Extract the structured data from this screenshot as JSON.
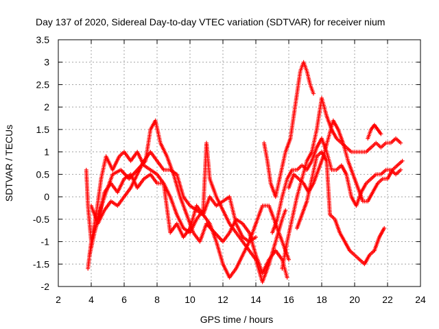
{
  "chart_data": {
    "type": "scatter",
    "title": "Day 137 of 2020, Sidereal Day-to-day VTEC variation (SDTVAR) for receiver nium",
    "xlabel": "GPS time / hours",
    "ylabel": "SDTVAR / TECUs",
    "xlim": [
      2,
      24
    ],
    "ylim": [
      -2,
      3.5
    ],
    "xticks": [
      2,
      4,
      6,
      8,
      10,
      12,
      14,
      16,
      18,
      20,
      22,
      24
    ],
    "yticks": [
      -2,
      -1.5,
      -1,
      -0.5,
      0,
      0.5,
      1,
      1.5,
      2,
      2.5,
      3,
      3.5
    ],
    "xtick_labels": [
      "2",
      "4",
      "6",
      "8",
      "10",
      "12",
      "14",
      "16",
      "18",
      "20",
      "22",
      "24"
    ],
    "ytick_labels": [
      "-2",
      "-1.5",
      "-1",
      "-0.5",
      "0",
      "0.5",
      "1",
      "1.5",
      "2",
      "2.5",
      "3",
      "3.5"
    ],
    "grid": true,
    "marker": "plus",
    "color": "#ff0000",
    "series": [
      {
        "name": "track-1",
        "points": [
          [
            3.7,
            0.6
          ],
          [
            3.8,
            -0.2
          ],
          [
            4.0,
            -1.0
          ],
          [
            4.3,
            -0.6
          ],
          [
            4.8,
            0.0
          ],
          [
            5.3,
            0.5
          ],
          [
            5.8,
            0.6
          ],
          [
            6.3,
            0.4
          ],
          [
            6.8,
            0.6
          ],
          [
            7.3,
            0.8
          ],
          [
            7.6,
            1.5
          ],
          [
            7.9,
            1.7
          ],
          [
            8.2,
            1.2
          ],
          [
            8.6,
            0.9
          ],
          [
            9.0,
            0.5
          ],
          [
            9.4,
            0.0
          ],
          [
            9.8,
            -0.4
          ],
          [
            10.2,
            -0.8
          ],
          [
            10.6,
            -1.0
          ],
          [
            11.0,
            -0.6
          ],
          [
            11.5,
            -0.8
          ],
          [
            12.0,
            -1.0
          ],
          [
            12.4,
            -0.8
          ],
          [
            12.8,
            -0.5
          ],
          [
            13.2,
            -0.6
          ],
          [
            13.6,
            -0.8
          ],
          [
            14.0,
            -1.3
          ],
          [
            14.4,
            -1.7
          ],
          [
            14.8,
            -1.4
          ],
          [
            15.2,
            -1.2
          ],
          [
            15.6,
            -1.4
          ],
          [
            15.9,
            -1.8
          ]
        ]
      },
      {
        "name": "track-2",
        "points": [
          [
            3.8,
            -1.6
          ],
          [
            4.0,
            -1.0
          ],
          [
            4.3,
            -0.4
          ],
          [
            4.6,
            0.4
          ],
          [
            4.9,
            0.9
          ],
          [
            5.3,
            0.6
          ],
          [
            5.7,
            0.9
          ],
          [
            6.0,
            1.0
          ],
          [
            6.4,
            0.8
          ],
          [
            6.8,
            1.0
          ],
          [
            7.2,
            0.7
          ],
          [
            7.6,
            0.6
          ],
          [
            8.0,
            0.5
          ],
          [
            8.4,
            0.3
          ],
          [
            8.8,
            0.0
          ],
          [
            9.2,
            -0.4
          ],
          [
            9.6,
            -0.7
          ],
          [
            10.0,
            -0.8
          ],
          [
            10.4,
            -0.5
          ],
          [
            10.8,
            -0.3
          ],
          [
            11.0,
            1.2
          ],
          [
            11.2,
            0.4
          ],
          [
            11.6,
            0.0
          ],
          [
            12.0,
            -0.3
          ],
          [
            12.4,
            -0.6
          ],
          [
            12.8,
            -0.8
          ],
          [
            13.2,
            -1.0
          ],
          [
            13.6,
            -1.2
          ],
          [
            14.0,
            -1.4
          ],
          [
            14.4,
            -1.9
          ],
          [
            14.8,
            -1.5
          ],
          [
            15.2,
            -1.0
          ],
          [
            15.6,
            -0.5
          ],
          [
            15.8,
            -0.3
          ]
        ]
      },
      {
        "name": "track-3",
        "points": [
          [
            3.9,
            -1.3
          ],
          [
            4.2,
            -0.8
          ],
          [
            4.5,
            -0.4
          ],
          [
            4.8,
            0.1
          ],
          [
            5.2,
            0.3
          ],
          [
            5.6,
            0.1
          ],
          [
            6.0,
            0.4
          ],
          [
            6.4,
            0.5
          ],
          [
            6.8,
            0.2
          ],
          [
            7.2,
            0.4
          ],
          [
            7.6,
            0.5
          ],
          [
            8.0,
            0.3
          ],
          [
            8.4,
            0.3
          ],
          [
            8.8,
            -0.8
          ],
          [
            9.2,
            -0.6
          ],
          [
            9.6,
            -0.9
          ],
          [
            10.0,
            -0.7
          ],
          [
            10.4,
            -0.2
          ],
          [
            10.8,
            -0.4
          ],
          [
            11.2,
            -0.6
          ],
          [
            11.6,
            -1.0
          ],
          [
            12.0,
            -1.5
          ],
          [
            12.4,
            -1.8
          ],
          [
            12.8,
            -1.6
          ],
          [
            13.2,
            -1.3
          ],
          [
            13.6,
            -1.0
          ],
          [
            14.0,
            -0.6
          ],
          [
            14.4,
            -0.2
          ],
          [
            14.8,
            -0.2
          ],
          [
            15.2,
            -0.6
          ],
          [
            15.6,
            -1.0
          ],
          [
            16.0,
            -1.4
          ]
        ]
      },
      {
        "name": "track-4",
        "points": [
          [
            4.0,
            -0.2
          ],
          [
            4.4,
            -0.6
          ],
          [
            4.8,
            -0.3
          ],
          [
            5.2,
            -0.1
          ],
          [
            5.6,
            -0.2
          ],
          [
            6.0,
            0.0
          ],
          [
            6.4,
            0.2
          ],
          [
            6.8,
            0.5
          ],
          [
            7.2,
            0.8
          ],
          [
            7.6,
            1.0
          ],
          [
            8.0,
            0.8
          ],
          [
            8.4,
            0.6
          ],
          [
            8.8,
            0.6
          ],
          [
            9.2,
            0.5
          ],
          [
            9.6,
            0.0
          ],
          [
            10.0,
            -0.2
          ],
          [
            10.4,
            -0.3
          ],
          [
            10.8,
            -0.4
          ],
          [
            11.2,
            0.0
          ],
          [
            11.6,
            -0.2
          ],
          [
            12.0,
            -0.1
          ],
          [
            12.4,
            0.0
          ],
          [
            12.8,
            -0.6
          ],
          [
            13.2,
            -0.9
          ],
          [
            13.6,
            -1.0
          ],
          [
            14.0,
            -0.9
          ]
        ]
      },
      {
        "name": "track-5",
        "points": [
          [
            14.5,
            1.2
          ],
          [
            14.7,
            0.8
          ],
          [
            14.9,
            0.3
          ],
          [
            15.2,
            0.0
          ],
          [
            15.5,
            0.5
          ],
          [
            15.8,
            1.0
          ],
          [
            16.1,
            1.3
          ],
          [
            16.3,
            1.8
          ],
          [
            16.5,
            2.3
          ],
          [
            16.7,
            2.8
          ],
          [
            16.9,
            3.0
          ],
          [
            17.1,
            2.8
          ],
          [
            17.3,
            2.5
          ],
          [
            17.5,
            2.3
          ]
        ]
      },
      {
        "name": "track-6",
        "points": [
          [
            15.0,
            -0.8
          ],
          [
            15.3,
            -0.5
          ],
          [
            15.6,
            0.0
          ],
          [
            15.9,
            0.4
          ],
          [
            16.2,
            0.6
          ],
          [
            16.5,
            0.6
          ],
          [
            16.8,
            0.7
          ],
          [
            17.1,
            0.6
          ],
          [
            17.4,
            0.8
          ],
          [
            17.7,
            1.1
          ],
          [
            18.0,
            1.3
          ],
          [
            18.3,
            1.0
          ],
          [
            18.6,
            0.6
          ],
          [
            18.9,
            0.6
          ],
          [
            19.2,
            0.7
          ],
          [
            19.5,
            0.5
          ],
          [
            19.8,
            0.0
          ],
          [
            20.1,
            -0.2
          ],
          [
            20.4,
            0.1
          ],
          [
            20.7,
            0.3
          ],
          [
            21.0,
            0.4
          ],
          [
            21.3,
            0.5
          ],
          [
            21.6,
            0.5
          ],
          [
            21.9,
            0.6
          ],
          [
            22.2,
            0.6
          ],
          [
            22.5,
            0.5
          ],
          [
            22.8,
            0.6
          ]
        ]
      },
      {
        "name": "track-7",
        "points": [
          [
            15.6,
            -1.6
          ],
          [
            15.9,
            -1.0
          ],
          [
            16.2,
            -0.5
          ],
          [
            16.5,
            0.0
          ],
          [
            16.8,
            0.4
          ],
          [
            17.1,
            0.8
          ],
          [
            17.4,
            1.0
          ],
          [
            17.7,
            1.5
          ],
          [
            18.0,
            2.2
          ],
          [
            18.3,
            1.8
          ],
          [
            18.6,
            1.5
          ],
          [
            18.9,
            1.3
          ],
          [
            19.2,
            1.2
          ],
          [
            19.5,
            1.1
          ],
          [
            19.8,
            1.0
          ],
          [
            20.1,
            1.0
          ],
          [
            20.4,
            1.0
          ],
          [
            20.7,
            1.0
          ],
          [
            21.0,
            1.1
          ],
          [
            21.3,
            1.2
          ],
          [
            21.6,
            1.1
          ],
          [
            21.9,
            1.2
          ],
          [
            22.2,
            1.2
          ],
          [
            22.5,
            1.3
          ],
          [
            22.8,
            1.2
          ]
        ]
      },
      {
        "name": "track-8",
        "points": [
          [
            16.5,
            -0.7
          ],
          [
            16.8,
            -0.4
          ],
          [
            17.1,
            -0.1
          ],
          [
            17.4,
            0.4
          ],
          [
            17.7,
            0.9
          ],
          [
            18.0,
            1.0
          ],
          [
            18.3,
            0.8
          ],
          [
            18.5,
            -0.4
          ],
          [
            18.8,
            -0.5
          ],
          [
            19.1,
            -0.8
          ],
          [
            19.4,
            -1.0
          ],
          [
            19.7,
            -1.2
          ],
          [
            20.0,
            -1.3
          ],
          [
            20.3,
            -1.4
          ],
          [
            20.6,
            -1.5
          ],
          [
            20.9,
            -1.3
          ],
          [
            21.2,
            -1.2
          ],
          [
            21.5,
            -0.9
          ],
          [
            21.8,
            -0.7
          ]
        ]
      },
      {
        "name": "track-9",
        "points": [
          [
            16.0,
            0.2
          ],
          [
            16.3,
            0.5
          ],
          [
            16.6,
            0.4
          ],
          [
            16.9,
            0.3
          ],
          [
            17.2,
            0.1
          ],
          [
            17.5,
            0.3
          ],
          [
            17.8,
            0.6
          ],
          [
            18.1,
            0.9
          ],
          [
            18.4,
            1.3
          ],
          [
            18.7,
            1.7
          ],
          [
            19.0,
            1.5
          ],
          [
            19.3,
            1.2
          ],
          [
            19.6,
            0.8
          ],
          [
            19.9,
            0.5
          ],
          [
            20.2,
            0.2
          ],
          [
            20.5,
            -0.1
          ],
          [
            20.8,
            -0.1
          ],
          [
            21.1,
            0.1
          ],
          [
            21.4,
            0.3
          ],
          [
            21.7,
            0.4
          ],
          [
            22.0,
            0.4
          ],
          [
            22.3,
            0.6
          ],
          [
            22.6,
            0.7
          ],
          [
            22.9,
            0.8
          ]
        ]
      },
      {
        "name": "track-10",
        "points": [
          [
            20.8,
            1.3
          ],
          [
            21.0,
            1.5
          ],
          [
            21.2,
            1.6
          ],
          [
            21.4,
            1.5
          ],
          [
            21.6,
            1.4
          ]
        ]
      }
    ]
  }
}
